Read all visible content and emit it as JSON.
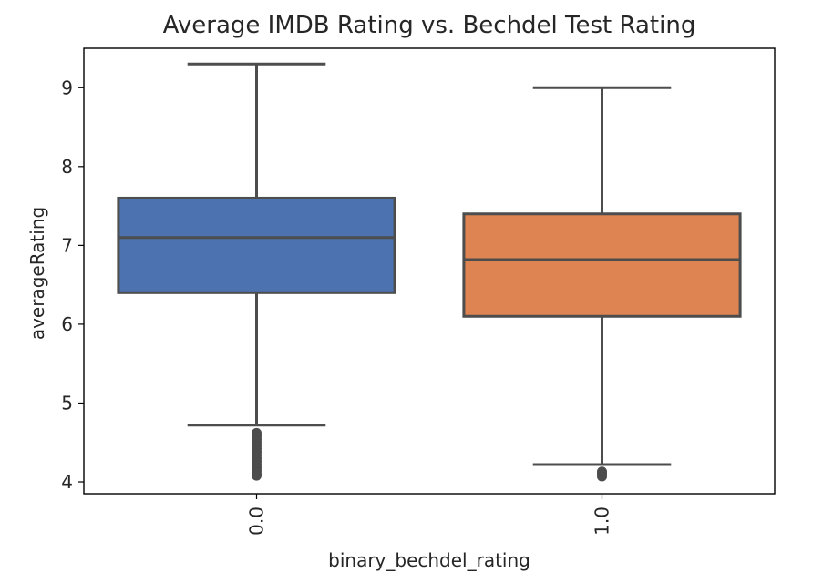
{
  "chart_data": {
    "type": "box",
    "title": "Average IMDB Rating vs. Bechdel Test Rating",
    "xlabel": "binary_bechdel_rating",
    "ylabel": "averageRating",
    "categories": [
      "0.0",
      "1.0"
    ],
    "ylim": [
      3.85,
      9.5
    ],
    "yticks": [
      4,
      5,
      6,
      7,
      8,
      9
    ],
    "grid": false,
    "boxes": [
      {
        "category": "0.0",
        "color": "#4c72b0",
        "whisker_low": 4.72,
        "q1": 6.4,
        "median": 7.1,
        "q3": 7.6,
        "whisker_high": 9.3,
        "outliers": [
          4.62,
          4.58,
          4.54,
          4.5,
          4.46,
          4.42,
          4.38,
          4.34,
          4.3,
          4.26,
          4.22,
          4.18,
          4.14,
          4.1,
          4.08
        ]
      },
      {
        "category": "1.0",
        "color": "#dd8452",
        "whisker_low": 4.22,
        "q1": 6.1,
        "median": 6.82,
        "q3": 7.4,
        "whisker_high": 9.0,
        "outliers": [
          4.13,
          4.1,
          4.07
        ]
      }
    ]
  }
}
